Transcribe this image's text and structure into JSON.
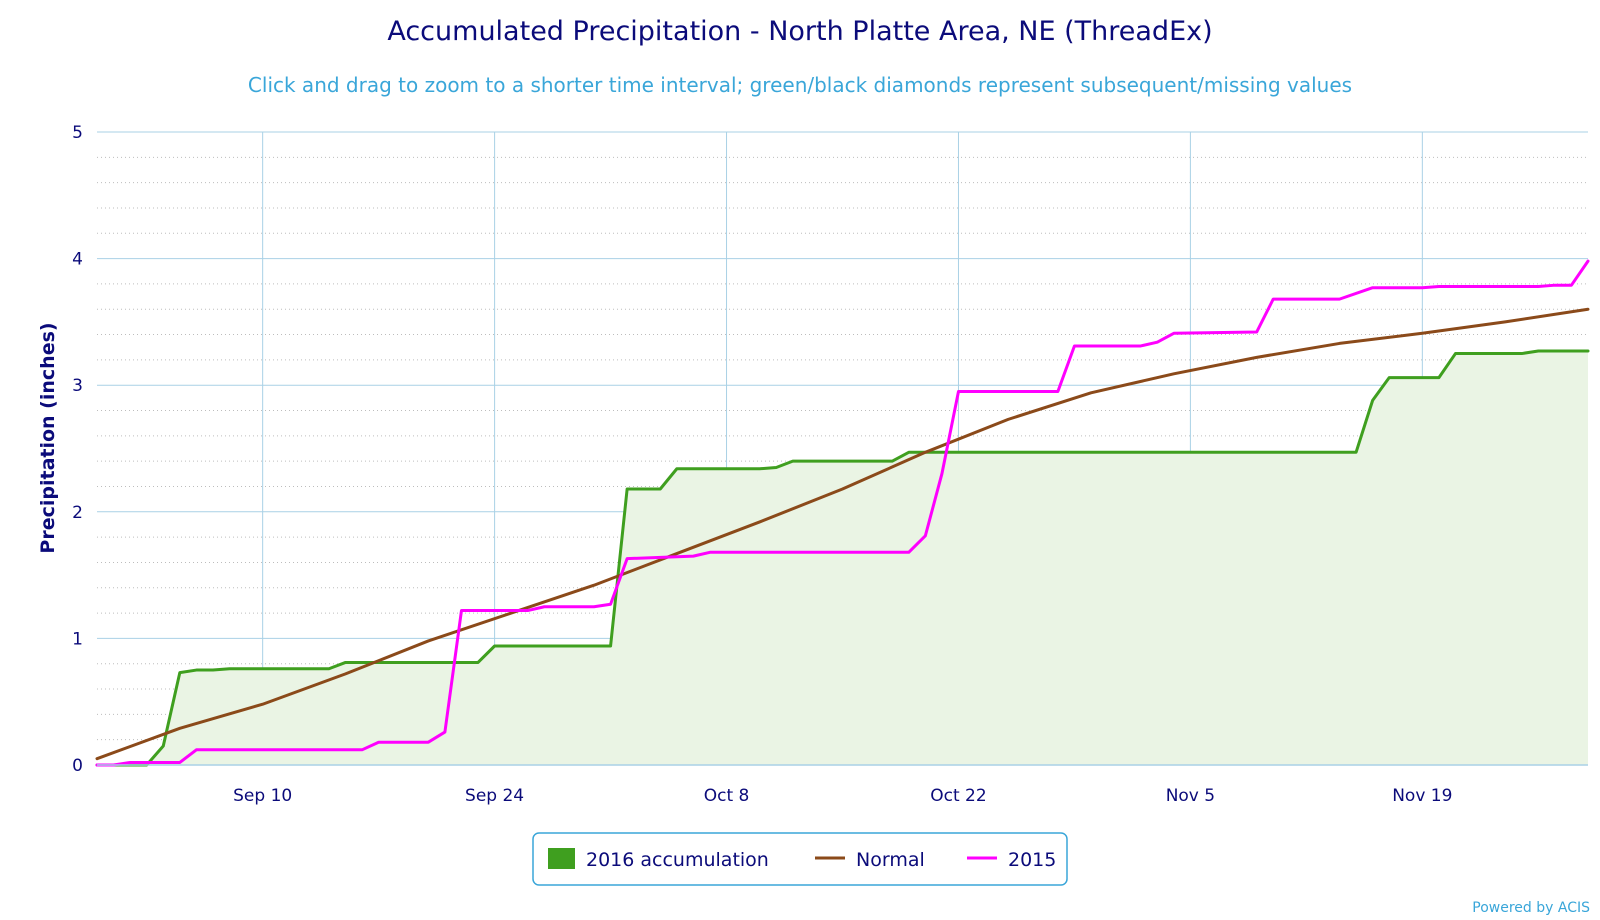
{
  "title": "Accumulated Precipitation - North Platte Area, NE (ThreadEx)",
  "subtitle": "Click and drag to zoom to a shorter time interval; green/black diamonds represent subsequent/missing values",
  "credit": "Powered by ACIS",
  "colors": {
    "accumulation_2016": "#3f9f1f",
    "accumulation_2016_fill": "#eaf4e4",
    "normal": "#8b4a1a",
    "year_2015": "#ff00ff",
    "grid": "#a9d1e6",
    "text": "#0b0b7a",
    "subtitle": "#3aa6d9"
  },
  "chart_data": {
    "type": "area",
    "title": "Accumulated Precipitation - North Platte Area, NE (ThreadEx)",
    "subtitle": "Click and drag to zoom to a shorter time interval; green/black diamonds represent subsequent/missing values",
    "xlabel": "",
    "ylabel": "Precipitation (inches)",
    "ylim": [
      0,
      5
    ],
    "yticks": [
      "0",
      "1",
      "2",
      "3",
      "4",
      "5"
    ],
    "y_minor_gridlines": true,
    "xlim": [
      "2016-08-31",
      "2016-11-29"
    ],
    "xticks": [
      {
        "date": "2016-09-10",
        "label": "Sep 10"
      },
      {
        "date": "2016-09-24",
        "label": "Sep 24"
      },
      {
        "date": "2016-10-08",
        "label": "Oct 8"
      },
      {
        "date": "2016-10-22",
        "label": "Oct 22"
      },
      {
        "date": "2016-11-05",
        "label": "Nov 5"
      },
      {
        "date": "2016-11-19",
        "label": "Nov 19"
      }
    ],
    "legend": {
      "position": "bottom-center",
      "entries": [
        "2016 accumulation",
        "Normal",
        "2015"
      ]
    },
    "series": [
      {
        "name": "2016 accumulation",
        "style": "area",
        "points": [
          [
            "2016-08-31",
            0
          ],
          [
            "2016-09-01",
            0
          ],
          [
            "2016-09-02",
            0
          ],
          [
            "2016-09-03",
            0
          ],
          [
            "2016-09-04",
            0.15
          ],
          [
            "2016-09-05",
            0.73
          ],
          [
            "2016-09-06",
            0.75
          ],
          [
            "2016-09-07",
            0.75
          ],
          [
            "2016-09-08",
            0.76
          ],
          [
            "2016-09-14",
            0.76
          ],
          [
            "2016-09-15",
            0.81
          ],
          [
            "2016-09-22",
            0.81
          ],
          [
            "2016-09-23",
            0.81
          ],
          [
            "2016-09-24",
            0.94
          ],
          [
            "2016-10-01",
            0.94
          ],
          [
            "2016-10-02",
            2.18
          ],
          [
            "2016-10-04",
            2.18
          ],
          [
            "2016-10-05",
            2.34
          ],
          [
            "2016-10-10",
            2.34
          ],
          [
            "2016-10-11",
            2.35
          ],
          [
            "2016-10-12",
            2.4
          ],
          [
            "2016-10-18",
            2.4
          ],
          [
            "2016-10-19",
            2.47
          ],
          [
            "2016-11-15",
            2.47
          ],
          [
            "2016-11-16",
            2.88
          ],
          [
            "2016-11-17",
            3.06
          ],
          [
            "2016-11-20",
            3.06
          ],
          [
            "2016-11-21",
            3.25
          ],
          [
            "2016-11-25",
            3.25
          ],
          [
            "2016-11-26",
            3.27
          ],
          [
            "2016-11-29",
            3.27
          ]
        ]
      },
      {
        "name": "Normal",
        "style": "line",
        "points": [
          [
            "2016-08-31",
            0.05
          ],
          [
            "2016-09-05",
            0.29
          ],
          [
            "2016-09-10",
            0.48
          ],
          [
            "2016-09-15",
            0.72
          ],
          [
            "2016-09-20",
            0.98
          ],
          [
            "2016-09-25",
            1.2
          ],
          [
            "2016-09-30",
            1.42
          ],
          [
            "2016-10-05",
            1.67
          ],
          [
            "2016-10-10",
            1.92
          ],
          [
            "2016-10-15",
            2.18
          ],
          [
            "2016-10-20",
            2.47
          ],
          [
            "2016-10-25",
            2.73
          ],
          [
            "2016-10-30",
            2.94
          ],
          [
            "2016-11-04",
            3.09
          ],
          [
            "2016-11-09",
            3.22
          ],
          [
            "2016-11-14",
            3.33
          ],
          [
            "2016-11-19",
            3.41
          ],
          [
            "2016-11-24",
            3.5
          ],
          [
            "2016-11-29",
            3.6
          ]
        ]
      },
      {
        "name": "2015",
        "style": "line",
        "points": [
          [
            "2016-08-31",
            0
          ],
          [
            "2016-09-01",
            0
          ],
          [
            "2016-09-02",
            0.02
          ],
          [
            "2016-09-05",
            0.02
          ],
          [
            "2016-09-06",
            0.12
          ],
          [
            "2016-09-16",
            0.12
          ],
          [
            "2016-09-17",
            0.18
          ],
          [
            "2016-09-20",
            0.18
          ],
          [
            "2016-09-21",
            0.26
          ],
          [
            "2016-09-22",
            1.22
          ],
          [
            "2016-09-26",
            1.22
          ],
          [
            "2016-09-27",
            1.25
          ],
          [
            "2016-09-30",
            1.25
          ],
          [
            "2016-10-01",
            1.27
          ],
          [
            "2016-10-02",
            1.63
          ],
          [
            "2016-10-06",
            1.65
          ],
          [
            "2016-10-07",
            1.68
          ],
          [
            "2016-10-19",
            1.68
          ],
          [
            "2016-10-20",
            1.81
          ],
          [
            "2016-10-21",
            2.3
          ],
          [
            "2016-10-22",
            2.95
          ],
          [
            "2016-10-28",
            2.95
          ],
          [
            "2016-10-29",
            3.31
          ],
          [
            "2016-11-02",
            3.31
          ],
          [
            "2016-11-03",
            3.34
          ],
          [
            "2016-11-04",
            3.41
          ],
          [
            "2016-11-09",
            3.42
          ],
          [
            "2016-11-10",
            3.68
          ],
          [
            "2016-11-14",
            3.68
          ],
          [
            "2016-11-16",
            3.77
          ],
          [
            "2016-11-19",
            3.77
          ],
          [
            "2016-11-20",
            3.78
          ],
          [
            "2016-11-26",
            3.78
          ],
          [
            "2016-11-27",
            3.79
          ],
          [
            "2016-11-28",
            3.79
          ],
          [
            "2016-11-29",
            3.98
          ]
        ]
      }
    ]
  }
}
